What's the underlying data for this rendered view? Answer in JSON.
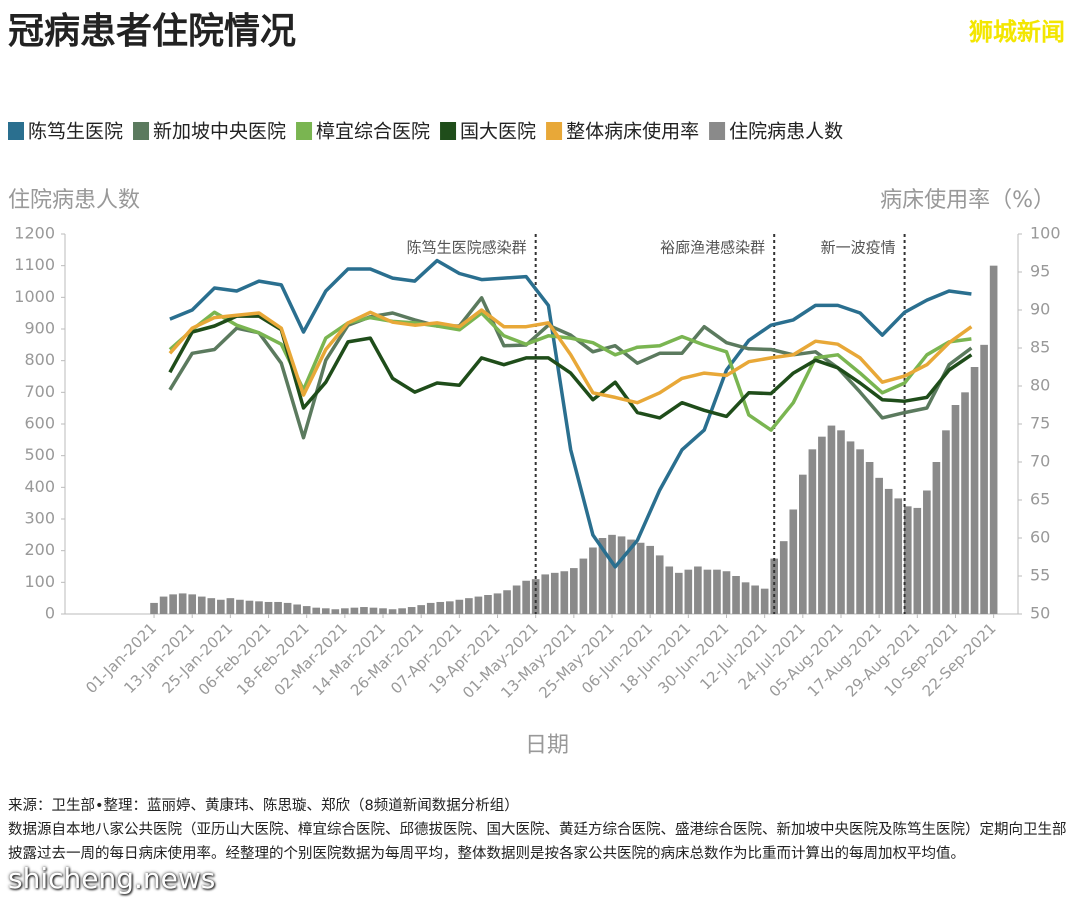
{
  "chart_data": {
    "type": "combo",
    "title": "冠病患者住院情况",
    "brand": "狮城新闻",
    "y_label": "住院病患人数",
    "y2_label": "病床使用率（%）",
    "x_label": "日期",
    "xlim": [
      "2020-12-04",
      "2021-09-24"
    ],
    "xticks": [
      {
        "value": "2021-01-01",
        "label": "01-Jan-2021"
      },
      {
        "value": "2021-01-13",
        "label": "13-Jan-2021"
      },
      {
        "value": "2021-01-25",
        "label": "25-Jan-2021"
      },
      {
        "value": "2021-02-06",
        "label": "06-Feb-2021"
      },
      {
        "value": "2021-02-18",
        "label": "18-Feb-2021"
      },
      {
        "value": "2021-03-02",
        "label": "02-Mar-2021"
      },
      {
        "value": "2021-03-14",
        "label": "14-Mar-2021"
      },
      {
        "value": "2021-03-26",
        "label": "26-Mar-2021"
      },
      {
        "value": "2021-04-07",
        "label": "07-Apr-2021"
      },
      {
        "value": "2021-04-19",
        "label": "19-Apr-2021"
      },
      {
        "value": "2021-05-01",
        "label": "01-May-2021"
      },
      {
        "value": "2021-05-13",
        "label": "13-May-2021"
      },
      {
        "value": "2021-05-25",
        "label": "25-May-2021"
      },
      {
        "value": "2021-06-06",
        "label": "06-Jun-2021"
      },
      {
        "value": "2021-06-18",
        "label": "18-Jun-2021"
      },
      {
        "value": "2021-06-30",
        "label": "30-Jun-2021"
      },
      {
        "value": "2021-07-12",
        "label": "12-Jul-2021"
      },
      {
        "value": "2021-07-24",
        "label": "24-Jul-2021"
      },
      {
        "value": "2021-08-05",
        "label": "05-Aug-2021"
      },
      {
        "value": "2021-08-17",
        "label": "17-Aug-2021"
      },
      {
        "value": "2021-08-29",
        "label": "29-Aug-2021"
      },
      {
        "value": "2021-09-10",
        "label": "10-Sep-2021"
      },
      {
        "value": "2021-09-22",
        "label": "22-Sep-2021"
      }
    ],
    "ylim": [
      0,
      1200
    ],
    "yticks": [
      0,
      100,
      200,
      300,
      400,
      500,
      600,
      700,
      800,
      900,
      1000,
      1100,
      1200
    ],
    "y2lim": [
      50,
      100
    ],
    "y2ticks": [
      50,
      55,
      60,
      65,
      70,
      75,
      80,
      85,
      90,
      95,
      100
    ],
    "annotations": [
      {
        "x": "2021-05-01",
        "label": "陈笃生医院感染群"
      },
      {
        "x": "2021-07-15",
        "label": "裕廊渔港感染群"
      },
      {
        "x": "2021-08-25",
        "label": "新一波疫情"
      }
    ],
    "x": [
      "2021-01-06",
      "2021-01-13",
      "2021-01-20",
      "2021-01-27",
      "2021-02-03",
      "2021-02-10",
      "2021-02-17",
      "2021-02-24",
      "2021-03-03",
      "2021-03-10",
      "2021-03-17",
      "2021-03-24",
      "2021-03-31",
      "2021-04-07",
      "2021-04-14",
      "2021-04-21",
      "2021-04-28",
      "2021-05-05",
      "2021-05-12",
      "2021-05-19",
      "2021-05-26",
      "2021-06-02",
      "2021-06-09",
      "2021-06-16",
      "2021-06-23",
      "2021-06-30",
      "2021-07-07",
      "2021-07-14",
      "2021-07-21",
      "2021-07-28",
      "2021-08-04",
      "2021-08-11",
      "2021-08-18",
      "2021-08-25",
      "2021-09-01",
      "2021-09-08",
      "2021-09-15"
    ],
    "series": [
      {
        "name": "陈笃生医院",
        "color": "#2a6f8f",
        "type": "line",
        "axis": "y2",
        "values": [
          88.8,
          90.0,
          92.9,
          92.5,
          93.8,
          93.3,
          87.1,
          92.5,
          95.4,
          95.4,
          94.2,
          93.8,
          96.5,
          94.8,
          94.0,
          94.2,
          94.4,
          90.6,
          71.6,
          60.4,
          56.2,
          59.7,
          66.3,
          71.6,
          74.2,
          82.1,
          86.0,
          88.0,
          88.7,
          90.6,
          90.6,
          89.6,
          86.7,
          89.7,
          91.3,
          92.5,
          92.1
        ]
      },
      {
        "name": "新加坡中央医院",
        "color": "#5b7a5e",
        "type": "line",
        "axis": "y2",
        "values": [
          79.5,
          84.3,
          84.8,
          87.6,
          87.0,
          83.0,
          73.2,
          83.4,
          88.0,
          89.1,
          89.6,
          88.7,
          87.9,
          87.9,
          91.6,
          85.3,
          85.4,
          88.0,
          86.7,
          84.5,
          85.3,
          83.0,
          84.3,
          84.3,
          87.8,
          85.7,
          84.9,
          84.8,
          84.1,
          84.5,
          82.4,
          79.2,
          75.8,
          76.5,
          77.1,
          82.8,
          85.0
        ]
      },
      {
        "name": "樟宜综合医院",
        "color": "#7ab551",
        "type": "line",
        "axis": "y2",
        "values": [
          84.8,
          87.4,
          89.7,
          88.0,
          87.0,
          85.5,
          79.5,
          86.3,
          88.3,
          89.0,
          88.5,
          88.3,
          87.9,
          87.4,
          89.6,
          86.6,
          85.5,
          86.6,
          86.3,
          85.7,
          84.1,
          85.1,
          85.3,
          86.5,
          85.4,
          84.5,
          76.2,
          74.2,
          77.8,
          83.7,
          84.1,
          81.7,
          79.1,
          80.4,
          84.1,
          85.8,
          86.2
        ]
      },
      {
        "name": "国大医院",
        "color": "#1f4d1a",
        "type": "line",
        "axis": "y2",
        "values": [
          81.8,
          87.1,
          87.9,
          89.2,
          89.2,
          87.4,
          77.1,
          80.5,
          85.8,
          86.3,
          81.0,
          79.2,
          80.4,
          80.1,
          83.7,
          82.8,
          83.7,
          83.7,
          81.7,
          78.2,
          80.5,
          76.5,
          75.8,
          77.8,
          76.8,
          76.0,
          79.1,
          79.0,
          81.7,
          83.4,
          82.4,
          80.4,
          78.2,
          78.0,
          78.5,
          82.1,
          84.1
        ]
      },
      {
        "name": "整体病床使用率",
        "color": "#e8a838",
        "type": "line",
        "axis": "y2",
        "values": [
          84.3,
          87.6,
          89.0,
          89.3,
          89.6,
          87.6,
          78.8,
          84.8,
          88.3,
          89.7,
          88.4,
          88.0,
          88.3,
          87.8,
          90.0,
          87.8,
          87.8,
          88.3,
          84.1,
          79.1,
          78.5,
          77.8,
          79.1,
          81.0,
          81.7,
          81.4,
          83.2,
          83.7,
          84.1,
          85.9,
          85.5,
          83.7,
          80.5,
          81.3,
          82.8,
          85.7,
          87.8
        ]
      },
      {
        "name": "住院病患人数",
        "color": "#8a8a8a",
        "type": "bar",
        "axis": "y",
        "x": [
          "2021-01-01",
          "2021-01-04",
          "2021-01-07",
          "2021-01-10",
          "2021-01-13",
          "2021-01-16",
          "2021-01-19",
          "2021-01-22",
          "2021-01-25",
          "2021-01-28",
          "2021-01-31",
          "2021-02-03",
          "2021-02-06",
          "2021-02-09",
          "2021-02-12",
          "2021-02-15",
          "2021-02-18",
          "2021-02-21",
          "2021-02-24",
          "2021-02-27",
          "2021-03-02",
          "2021-03-05",
          "2021-03-08",
          "2021-03-11",
          "2021-03-14",
          "2021-03-17",
          "2021-03-20",
          "2021-03-23",
          "2021-03-26",
          "2021-03-29",
          "2021-04-01",
          "2021-04-04",
          "2021-04-07",
          "2021-04-10",
          "2021-04-13",
          "2021-04-16",
          "2021-04-19",
          "2021-04-22",
          "2021-04-25",
          "2021-04-28",
          "2021-05-01",
          "2021-05-04",
          "2021-05-07",
          "2021-05-10",
          "2021-05-13",
          "2021-05-16",
          "2021-05-19",
          "2021-05-22",
          "2021-05-25",
          "2021-05-28",
          "2021-05-31",
          "2021-06-03",
          "2021-06-06",
          "2021-06-09",
          "2021-06-12",
          "2021-06-15",
          "2021-06-18",
          "2021-06-21",
          "2021-06-24",
          "2021-06-27",
          "2021-06-30",
          "2021-07-03",
          "2021-07-06",
          "2021-07-09",
          "2021-07-12",
          "2021-07-15",
          "2021-07-18",
          "2021-07-21",
          "2021-07-24",
          "2021-07-27",
          "2021-07-30",
          "2021-08-02",
          "2021-08-05",
          "2021-08-08",
          "2021-08-11",
          "2021-08-14",
          "2021-08-17",
          "2021-08-20",
          "2021-08-23",
          "2021-08-26",
          "2021-08-29",
          "2021-09-01",
          "2021-09-04",
          "2021-09-07",
          "2021-09-10",
          "2021-09-13",
          "2021-09-16",
          "2021-09-19",
          "2021-09-22"
        ],
        "values": [
          35,
          55,
          62,
          65,
          62,
          55,
          50,
          45,
          50,
          45,
          42,
          40,
          38,
          38,
          35,
          30,
          25,
          20,
          18,
          15,
          18,
          20,
          22,
          20,
          18,
          15,
          18,
          22,
          28,
          35,
          38,
          40,
          45,
          50,
          55,
          60,
          65,
          75,
          90,
          105,
          110,
          125,
          130,
          135,
          145,
          175,
          210,
          240,
          250,
          245,
          235,
          225,
          215,
          185,
          150,
          130,
          140,
          150,
          140,
          140,
          135,
          120,
          100,
          90,
          80,
          175,
          230,
          330,
          440,
          520,
          560,
          595,
          580,
          545,
          520,
          480,
          430,
          395,
          365,
          340,
          335,
          390,
          480,
          580,
          660,
          700,
          780,
          850,
          1100
        ]
      }
    ],
    "source": "来源：卫生部•整理：蓝丽婷、黄康玮、陈思璇、郑欣（8频道新闻数据分析组）",
    "notes": "数据源自本地八家公共医院（亚历山大医院、樟宜综合医院、邱德拔医院、国大医院、黄廷方综合医院、盛港综合医院、新加坡中央医院及陈笃生医院）定期向卫生部披露过去一周的每日病床使用率。经整理的个别医院数据为每周平均，整体数据则是按各家公共医院的病床总数作为比重而计算出的每周加权平均值。",
    "watermark": "shicheng.news"
  }
}
